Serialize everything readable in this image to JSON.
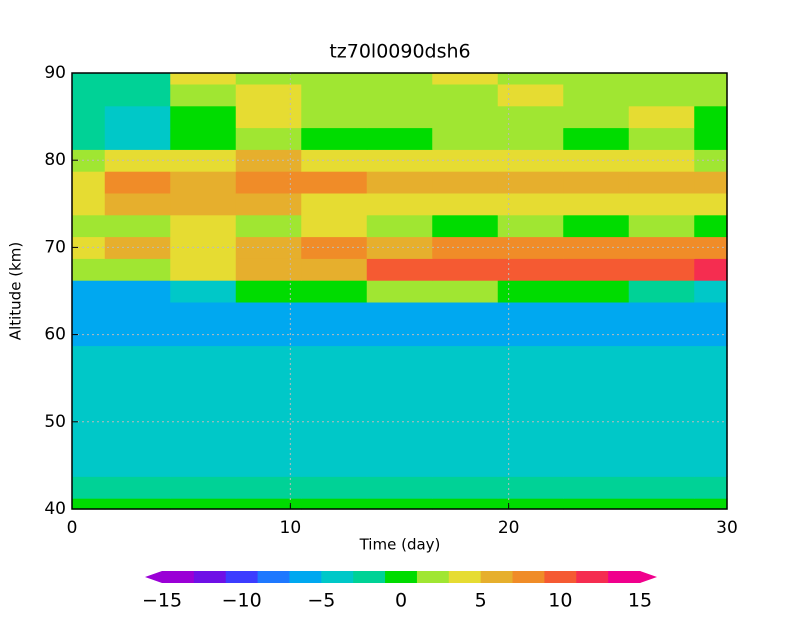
{
  "chart_data": {
    "type": "contour",
    "title": "tz70l0090dsh6",
    "x_label": "Time (day)",
    "y_label": "Altitude (km)",
    "x": [
      0,
      3,
      6,
      9,
      12,
      15,
      18,
      21,
      24,
      27,
      30
    ],
    "y": [
      40,
      42.5,
      45,
      47.5,
      50,
      52.5,
      55,
      57.5,
      60,
      62.5,
      65,
      67.5,
      70,
      72.5,
      75,
      77.5,
      80,
      82.5,
      85,
      87.5,
      90
    ],
    "z": [
      [
        -1,
        -1,
        -1,
        -1,
        -1,
        -1,
        -1,
        -1,
        -1,
        -1,
        -1
      ],
      [
        -3,
        -3,
        -3,
        -3,
        -3,
        -3,
        -3,
        -3,
        -3,
        -3,
        -3
      ],
      [
        -4,
        -4,
        -4,
        -4,
        -4,
        -4,
        -4,
        -4,
        -4,
        -4,
        -4
      ],
      [
        -4,
        -4,
        -4,
        -4,
        -4,
        -4,
        -4,
        -4,
        -4,
        -4,
        -4
      ],
      [
        -4,
        -4,
        -4,
        -4.5,
        -4,
        -4,
        -4,
        -4,
        -4,
        -4,
        -4
      ],
      [
        -4,
        -4,
        -4.5,
        -4.5,
        -4.5,
        -4.5,
        -4,
        -4,
        -4,
        -4,
        -4
      ],
      [
        -4.5,
        -4.5,
        -4.5,
        -4.5,
        -4.5,
        -4.5,
        -4.5,
        -4.5,
        -4.5,
        -4.5,
        -4.5
      ],
      [
        -4.5,
        -4.5,
        -4.5,
        -5,
        -5,
        -5,
        -5,
        -5,
        -5,
        -5,
        -4.5
      ],
      [
        -5.5,
        -5.5,
        -5.5,
        -5.5,
        -5.5,
        -5.5,
        -5.5,
        -5.5,
        -5.5,
        -5.5,
        -5.5
      ],
      [
        -5.5,
        -6,
        -6.5,
        -6.5,
        -6.5,
        -6.5,
        -6.5,
        -6.5,
        -6.5,
        -6.5,
        -6
      ],
      [
        -6,
        -6,
        -5,
        -1,
        0,
        1,
        1,
        0,
        0,
        -2,
        -4
      ],
      [
        2,
        2,
        3,
        5,
        6,
        10,
        9,
        10,
        9,
        10,
        11
      ],
      [
        4,
        5,
        4,
        6,
        7,
        6,
        7,
        7,
        8,
        8,
        8
      ],
      [
        2,
        1,
        3,
        2,
        4,
        1,
        -1,
        2,
        -1,
        2,
        0
      ],
      [
        3,
        6,
        5,
        5,
        4,
        4,
        3,
        4,
        3,
        4,
        3
      ],
      [
        4,
        8,
        6,
        7,
        7,
        5,
        6,
        6,
        5,
        6,
        5
      ],
      [
        1,
        3,
        4,
        5,
        3,
        4,
        3,
        3,
        3,
        3,
        2
      ],
      [
        -3,
        -5,
        0,
        2,
        -1,
        0,
        1,
        1,
        0,
        2,
        -1
      ],
      [
        -3,
        -4,
        0,
        3,
        1,
        2,
        1,
        2,
        1,
        3,
        0
      ],
      [
        -2,
        -3,
        2,
        3,
        1,
        2,
        2,
        3,
        2,
        1,
        1
      ],
      [
        -2,
        -2,
        3,
        2,
        1,
        2,
        3,
        1,
        2,
        2,
        2
      ]
    ],
    "xlim": [
      0,
      30
    ],
    "xticks": [
      0,
      10,
      20,
      30
    ],
    "ylim": [
      40,
      90
    ],
    "yticks": [
      40,
      50,
      60,
      70,
      80,
      90
    ],
    "grid": true,
    "levels": [
      -15,
      -13,
      -11,
      -9,
      -7,
      -5,
      -3,
      -1,
      1,
      3,
      5,
      7,
      9,
      11,
      13,
      15
    ],
    "colors": [
      "#9a00d6",
      "#6e10e6",
      "#3c3cff",
      "#1e78ff",
      "#00a8f0",
      "#00c8c8",
      "#00d296",
      "#00dc00",
      "#a0e632",
      "#e6dc32",
      "#e6af2d",
      "#f08c28",
      "#f55a32",
      "#f52d50",
      "#f0008c"
    ],
    "colorbar_ticks": [
      {
        "value": -15,
        "label": "−15"
      },
      {
        "value": -10,
        "label": "−10"
      },
      {
        "value": -5,
        "label": "−5"
      },
      0,
      5,
      10,
      15
    ]
  }
}
